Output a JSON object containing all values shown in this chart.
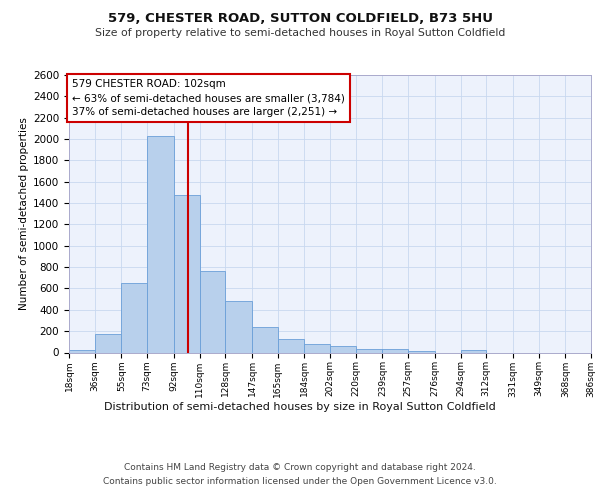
{
  "title1": "579, CHESTER ROAD, SUTTON COLDFIELD, B73 5HU",
  "title2": "Size of property relative to semi-detached houses in Royal Sutton Coldfield",
  "xlabel_bottom": "Distribution of semi-detached houses by size in Royal Sutton Coldfield",
  "ylabel": "Number of semi-detached properties",
  "footer1": "Contains HM Land Registry data © Crown copyright and database right 2024.",
  "footer2": "Contains public sector information licensed under the Open Government Licence v3.0.",
  "annotation_title": "579 CHESTER ROAD: 102sqm",
  "annotation_line1": "← 63% of semi-detached houses are smaller (3,784)",
  "annotation_line2": "37% of semi-detached houses are larger (2,251) →",
  "bar_left_edges": [
    18,
    36,
    55,
    73,
    92,
    110,
    128,
    147,
    165,
    184,
    202,
    220,
    239,
    257,
    276,
    294,
    312,
    331,
    349,
    368
  ],
  "bar_right_edges": [
    36,
    55,
    73,
    92,
    110,
    128,
    147,
    165,
    184,
    202,
    220,
    239,
    257,
    276,
    294,
    312,
    331,
    349,
    368,
    386
  ],
  "bar_heights": [
    20,
    175,
    650,
    2025,
    1480,
    760,
    480,
    235,
    125,
    80,
    65,
    35,
    30,
    15,
    0,
    25,
    0,
    0,
    0,
    0
  ],
  "bar_color": "#b8d0ec",
  "bar_edge_color": "#6a9fd8",
  "vline_color": "#cc0000",
  "vline_x": 102,
  "ylim": [
    0,
    2600
  ],
  "yticks": [
    0,
    200,
    400,
    600,
    800,
    1000,
    1200,
    1400,
    1600,
    1800,
    2000,
    2200,
    2400,
    2600
  ],
  "xtick_positions": [
    18,
    36,
    55,
    73,
    92,
    110,
    128,
    147,
    165,
    184,
    202,
    220,
    239,
    257,
    276,
    294,
    312,
    331,
    349,
    368,
    386
  ],
  "xtick_labels": [
    "18sqm",
    "36sqm",
    "55sqm",
    "73sqm",
    "92sqm",
    "110sqm",
    "128sqm",
    "147sqm",
    "165sqm",
    "184sqm",
    "202sqm",
    "220sqm",
    "239sqm",
    "257sqm",
    "276sqm",
    "294sqm",
    "312sqm",
    "331sqm",
    "349sqm",
    "368sqm",
    "386sqm"
  ],
  "grid_color": "#c8d8f0",
  "background_color": "#edf2fc",
  "xlim": [
    18,
    386
  ]
}
